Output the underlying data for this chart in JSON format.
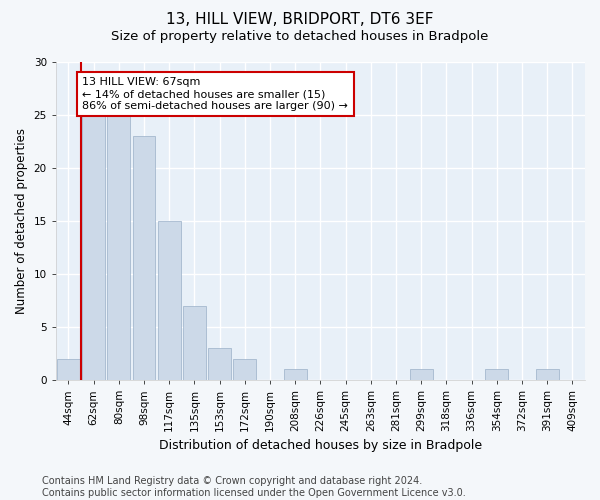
{
  "title1": "13, HILL VIEW, BRIDPORT, DT6 3EF",
  "title2": "Size of property relative to detached houses in Bradpole",
  "xlabel": "Distribution of detached houses by size in Bradpole",
  "ylabel": "Number of detached properties",
  "categories": [
    "44sqm",
    "62sqm",
    "80sqm",
    "98sqm",
    "117sqm",
    "135sqm",
    "153sqm",
    "172sqm",
    "190sqm",
    "208sqm",
    "226sqm",
    "245sqm",
    "263sqm",
    "281sqm",
    "299sqm",
    "318sqm",
    "336sqm",
    "354sqm",
    "372sqm",
    "391sqm",
    "409sqm"
  ],
  "values": [
    2,
    25,
    25,
    23,
    15,
    7,
    3,
    2,
    0,
    1,
    0,
    0,
    0,
    0,
    1,
    0,
    0,
    1,
    0,
    1,
    0
  ],
  "bar_color": "#ccd9e8",
  "bar_edge_color": "#9ab0c8",
  "subject_line_color": "#cc0000",
  "annotation_text": "13 HILL VIEW: 67sqm\n← 14% of detached houses are smaller (15)\n86% of semi-detached houses are larger (90) →",
  "annotation_box_facecolor": "#ffffff",
  "annotation_box_edgecolor": "#cc0000",
  "ylim": [
    0,
    30
  ],
  "yticks": [
    0,
    5,
    10,
    15,
    20,
    25,
    30
  ],
  "footer_text": "Contains HM Land Registry data © Crown copyright and database right 2024.\nContains public sector information licensed under the Open Government Licence v3.0.",
  "background_color": "#f4f7fa",
  "plot_background_color": "#e8f0f8",
  "grid_color": "#ffffff",
  "title1_fontsize": 11,
  "title2_fontsize": 9.5,
  "xlabel_fontsize": 9,
  "ylabel_fontsize": 8.5,
  "tick_fontsize": 7.5,
  "footer_fontsize": 7,
  "ann_fontsize": 8
}
